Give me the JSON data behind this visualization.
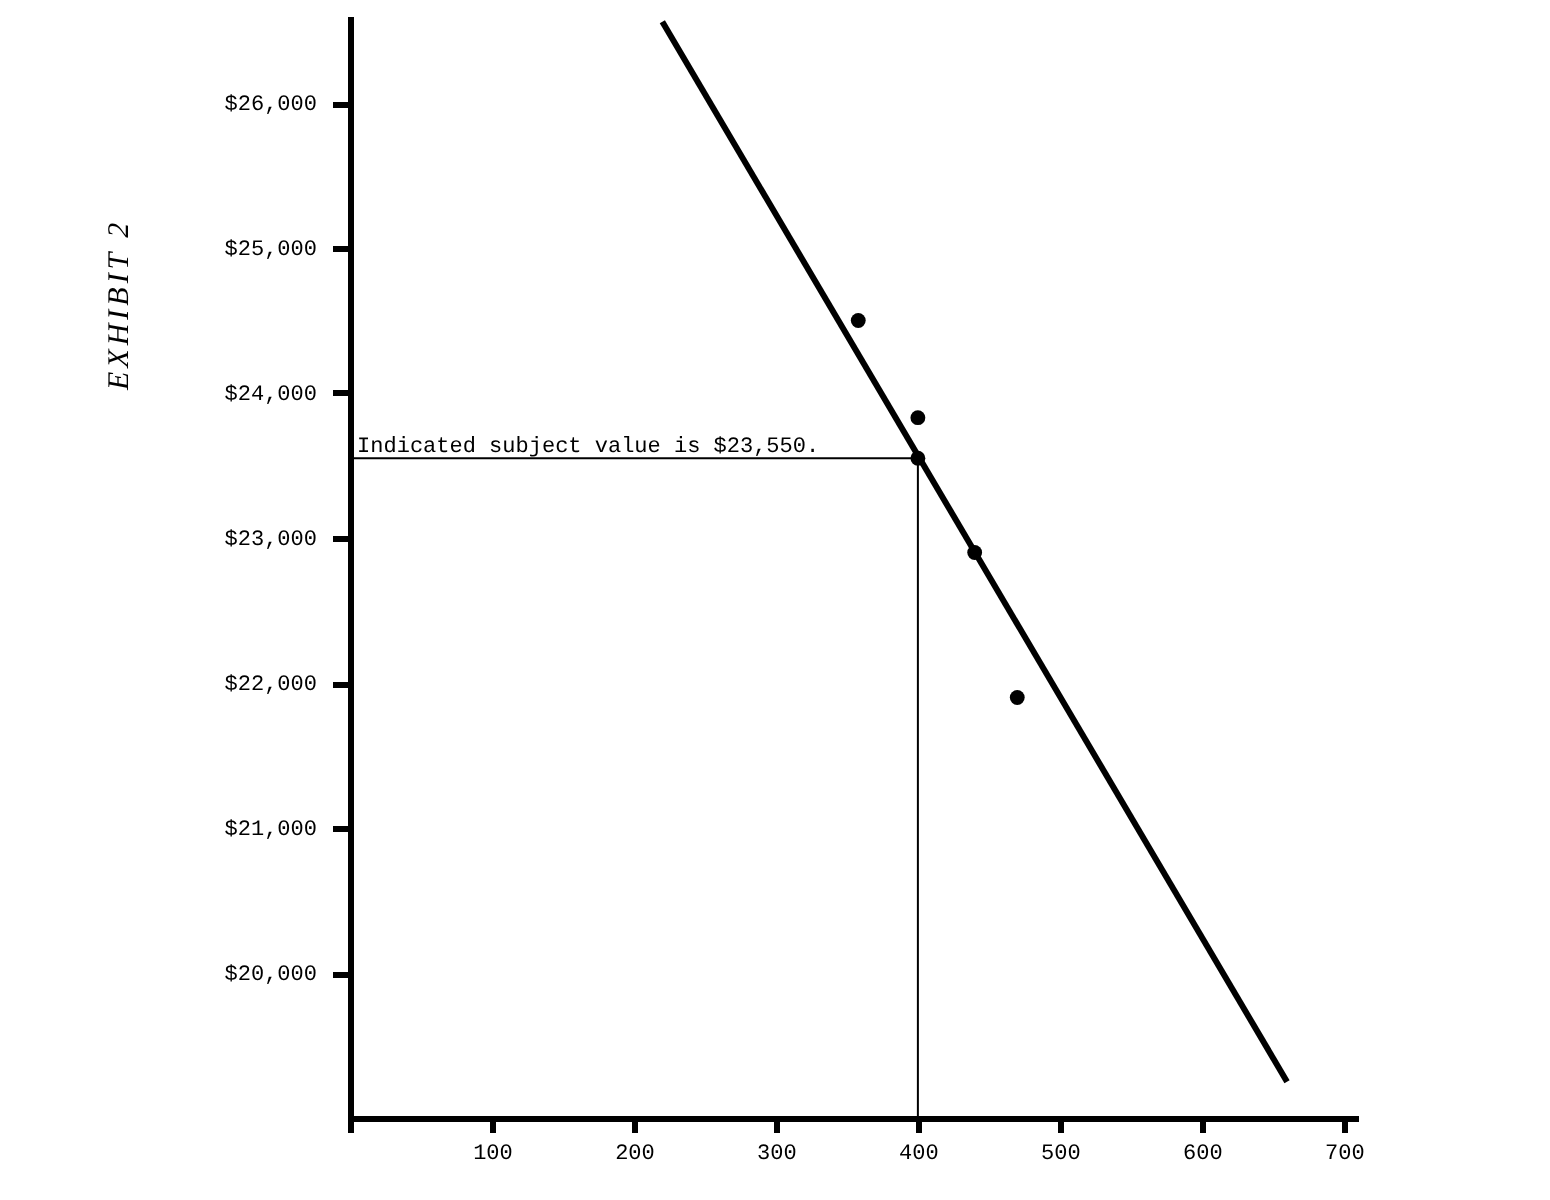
{
  "chart_data": {
    "type": "scatter",
    "marker": "circle",
    "grid": false,
    "xlim": [
      0,
      710
    ],
    "ylim": [
      19000,
      26600
    ],
    "xticks": [
      {
        "value": 0,
        "label": null
      },
      100,
      200,
      300,
      400,
      500,
      600,
      700
    ],
    "yticks": [
      {
        "value": 20000,
        "label": "$20,000"
      },
      {
        "value": 21000,
        "label": "$21,000"
      },
      {
        "value": 22000,
        "label": "$22,000"
      },
      {
        "value": 23000,
        "label": "$23,000"
      },
      {
        "value": 24000,
        "label": "$24,000"
      },
      {
        "value": 25000,
        "label": "$25,000"
      },
      {
        "value": 26000,
        "label": "$26,000"
      }
    ],
    "series": [
      {
        "color": "#000000",
        "x": [
          358,
          400,
          400,
          440,
          470
        ],
        "values": [
          24500,
          23830,
          23550,
          22900,
          21900
        ]
      },
      {
        "type": "line",
        "color": "#000000",
        "marker": "none",
        "x": [
          220,
          660
        ],
        "values": [
          26560,
          19250
        ]
      },
      {
        "type": "line",
        "color": "#000000",
        "marker": "none",
        "x": [
          0,
          400
        ],
        "values": [
          23550,
          23550
        ]
      },
      {
        "type": "line",
        "color": "#000000",
        "marker": "none",
        "x": [
          400,
          400
        ],
        "values": [
          19000,
          23550
        ]
      }
    ],
    "annotations": [
      {
        "text": "Indicated subject value is $23,550.",
        "x": 5,
        "y": 23550
      },
      "EXHIBIT 2"
    ]
  }
}
